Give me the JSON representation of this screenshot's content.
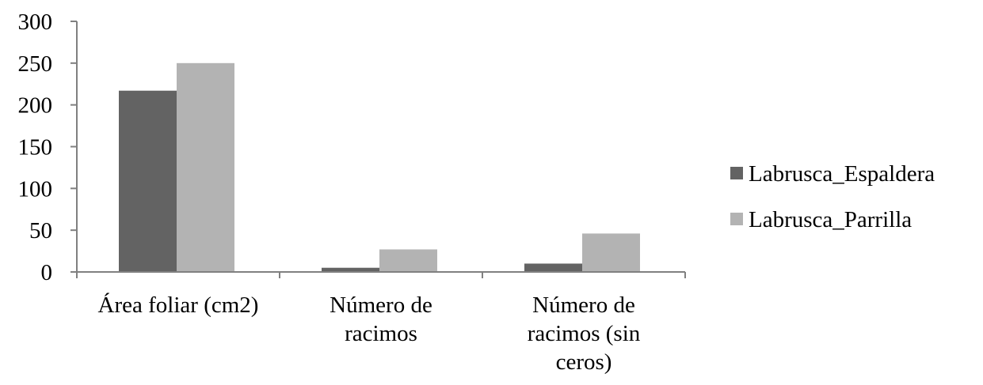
{
  "chart_data": {
    "type": "bar",
    "categories": [
      [
        "Área foliar (cm2)"
      ],
      [
        "Número de",
        "racimos"
      ],
      [
        "Número de",
        "racimos (sin",
        "ceros)"
      ]
    ],
    "series": [
      {
        "name": "Labrusca_Espaldera",
        "values": [
          217,
          5,
          10
        ],
        "color": "#636363"
      },
      {
        "name": "Labrusca_Parrilla",
        "values": [
          250,
          27,
          46
        ],
        "color": "#b3b3b3"
      }
    ],
    "y_ticks": [
      "0",
      "50",
      "100",
      "150",
      "200",
      "250",
      "300"
    ],
    "ylim": [
      0,
      300
    ],
    "grid": false,
    "legend": "right"
  }
}
